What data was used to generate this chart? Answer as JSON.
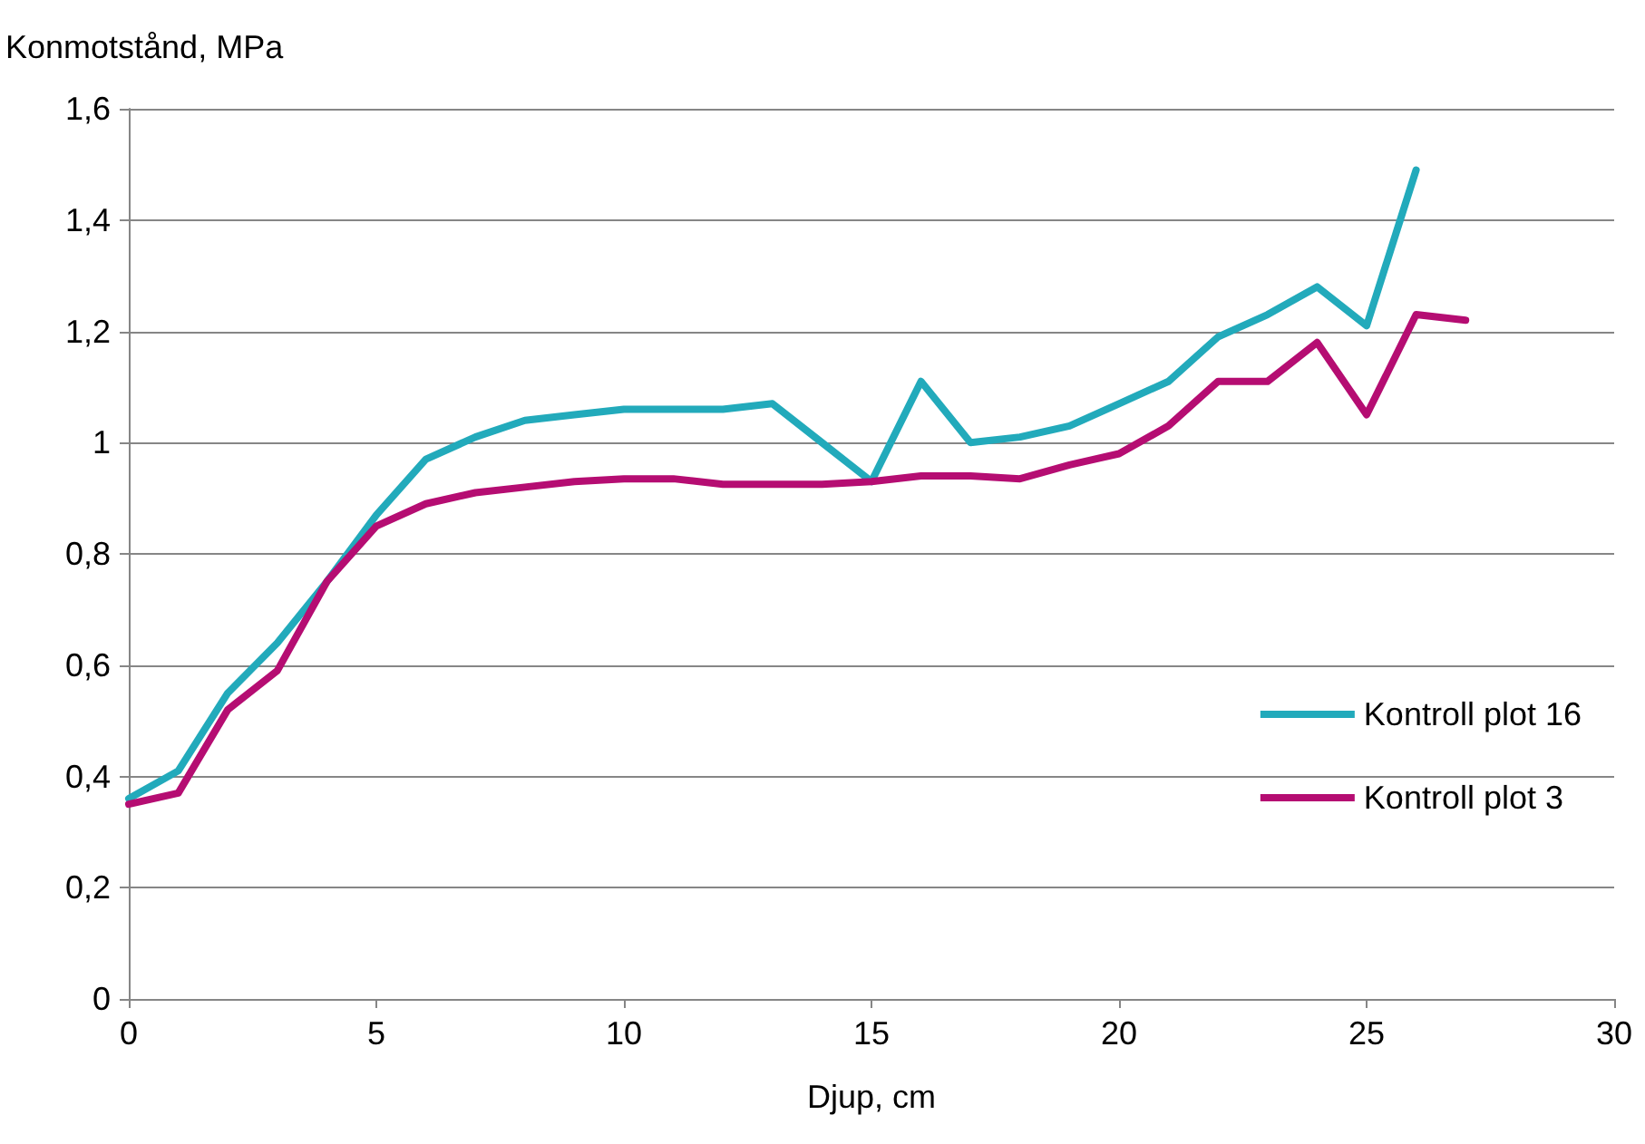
{
  "chart_data": {
    "type": "line",
    "xlabel": "Djup, cm",
    "ylabel": "Konmotstånd, MPa",
    "series": [
      {
        "name": "Kontroll plot 16",
        "color": "#22aabb",
        "x": [
          0,
          1,
          2,
          3,
          4,
          5,
          6,
          7,
          8,
          9,
          10,
          11,
          12,
          13,
          14,
          15,
          16,
          17,
          18,
          19,
          20,
          21,
          22,
          23,
          24,
          25,
          26
        ],
        "values": [
          0.36,
          0.41,
          0.55,
          0.64,
          0.75,
          0.87,
          0.97,
          1.01,
          1.04,
          1.05,
          1.06,
          1.06,
          1.06,
          1.07,
          1.0,
          0.93,
          1.11,
          1.0,
          1.01,
          1.03,
          1.07,
          1.11,
          1.19,
          1.23,
          1.28,
          1.21,
          1.49
        ]
      },
      {
        "name": "Kontroll plot 3",
        "color": "#b50d72",
        "x": [
          0,
          1,
          2,
          3,
          4,
          5,
          6,
          7,
          8,
          9,
          10,
          11,
          12,
          13,
          14,
          15,
          16,
          17,
          18,
          19,
          20,
          21,
          22,
          23,
          24,
          25,
          26,
          27
        ],
        "values": [
          0.35,
          0.37,
          0.52,
          0.59,
          0.75,
          0.85,
          0.89,
          0.91,
          0.92,
          0.93,
          0.935,
          0.935,
          0.925,
          0.925,
          0.925,
          0.93,
          0.94,
          0.94,
          0.935,
          0.96,
          0.98,
          1.03,
          1.11,
          1.11,
          1.18,
          1.05,
          1.23,
          1.22
        ]
      }
    ],
    "xlim": [
      0,
      30
    ],
    "xticks": [
      0,
      5,
      10,
      15,
      20,
      25,
      30
    ],
    "ylim": [
      0,
      1.6
    ],
    "yticks": [
      0,
      {
        "value": 0.2,
        "label": "0,2"
      },
      {
        "value": 0.4,
        "label": "0,4"
      },
      {
        "value": 0.6,
        "label": "0,6"
      },
      {
        "value": 0.8,
        "label": "0,8"
      },
      1,
      {
        "value": 1.2,
        "label": "1,2"
      },
      {
        "value": 1.4,
        "label": "1,4"
      },
      {
        "value": 1.6,
        "label": "1,6"
      }
    ],
    "grid": "y",
    "legend": "right",
    "marker": "none",
    "line_style": "solid"
  }
}
